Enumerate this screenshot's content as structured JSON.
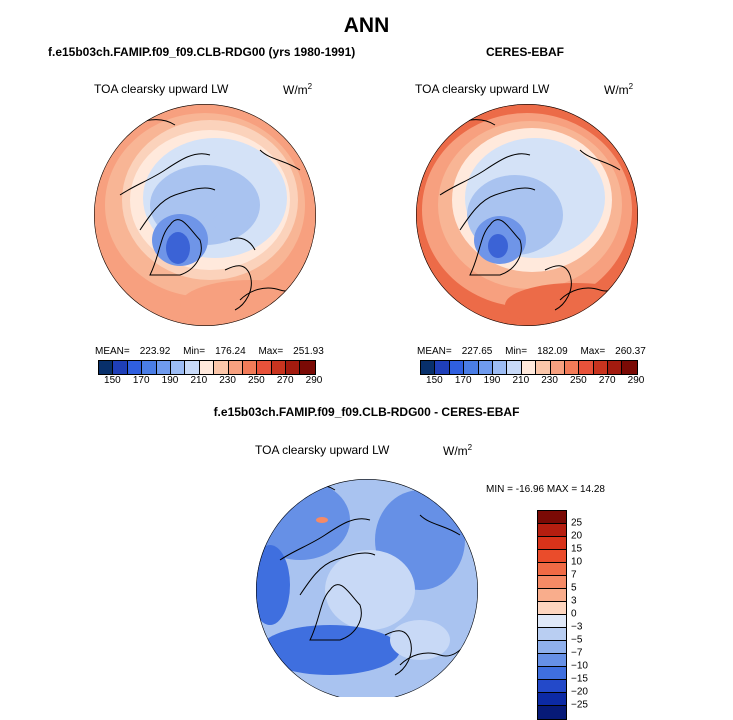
{
  "figure": {
    "title": "ANN",
    "left_panel_header": "f.e15b03ch.FAMIP.f09_f09.CLB-RDG00 (yrs 1980-1991)",
    "right_panel_header": "CERES-EBAF",
    "diff_panel_header": "f.e15b03ch.FAMIP.f09_f09.CLB-RDG00 - CERES-EBAF"
  },
  "panels": {
    "model": {
      "var_label": "TOA clearsky upward LW",
      "units_base": "W/m",
      "units_exp": "2",
      "mean_label": "MEAN=",
      "mean": "223.92",
      "min_label": "Min=",
      "min": "176.24",
      "max_label": "Max=",
      "max": "251.93"
    },
    "obs": {
      "var_label": "TOA clearsky upward LW",
      "units_base": "W/m",
      "units_exp": "2",
      "mean_label": "MEAN=",
      "mean": "227.65",
      "min_label": "Min=",
      "min": "182.09",
      "max_label": "Max=",
      "max": "260.37"
    },
    "diff": {
      "var_label": "TOA clearsky upward LW",
      "units_base": "W/m",
      "units_exp": "2",
      "min_label": "MIN =",
      "min": "-16.96",
      "max_label": "MAX =",
      "max": "14.28"
    }
  },
  "colorbars": {
    "abs_ticks": [
      "150",
      "170",
      "190",
      "210",
      "230",
      "250",
      "270",
      "290"
    ],
    "abs_colors": [
      "#08306b",
      "#1f3fb8",
      "#2f5fe0",
      "#4a7de6",
      "#6f9bef",
      "#9cbcf4",
      "#c8daf8",
      "#ffe9dc",
      "#fbc6a9",
      "#f7a07f",
      "#f27b58",
      "#e8523a",
      "#c9341f",
      "#a31b0f",
      "#7a0a05"
    ],
    "diff_ticks": [
      "25",
      "20",
      "15",
      "10",
      "7",
      "5",
      "3",
      "0",
      "−3",
      "−5",
      "−7",
      "−10",
      "−15",
      "−20",
      "−25"
    ],
    "diff_colors": [
      "#7a0a05",
      "#b51e10",
      "#d8331a",
      "#ea4c2b",
      "#f06a45",
      "#f58a66",
      "#f9ad8c",
      "#fdd5bf",
      "#dfe8f8",
      "#b9cef2",
      "#8fb0ec",
      "#6690e6",
      "#3f6fdf",
      "#2349c9",
      "#0c2aa5",
      "#071a78"
    ]
  },
  "map_colors": {
    "warm1": "#f7a07f",
    "warm2": "#f8b595",
    "warm3": "#fbd2bb",
    "pale": "#ffe9dc",
    "cool1": "#d4e2f7",
    "cool2": "#a9c3f0",
    "cool3": "#6f95e8",
    "cool4": "#3b63d6",
    "strong_warm": "#ec6b48",
    "diff_bg": "#a9c3f0",
    "diff_mid": "#6690e6",
    "diff_deep": "#3f6fdf",
    "diff_light": "#c8d9f6",
    "diff_warm": "#f58a66"
  }
}
